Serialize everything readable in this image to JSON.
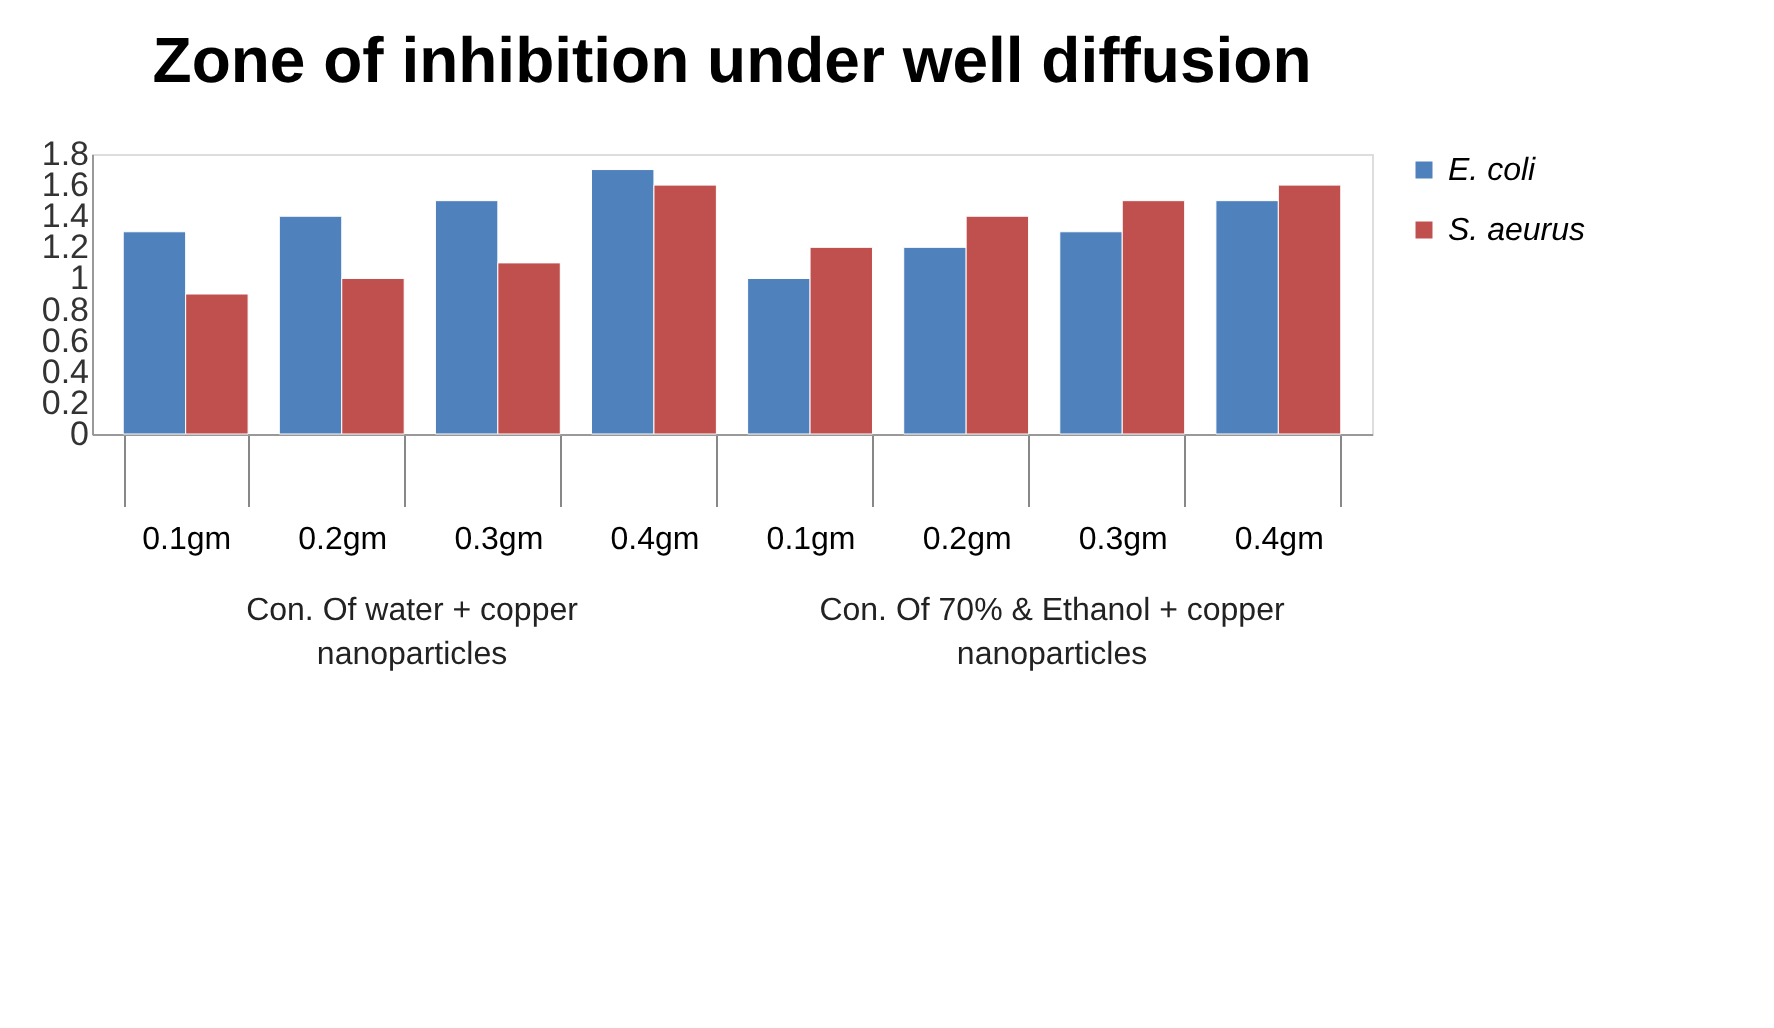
{
  "chart_data": {
    "type": "bar",
    "title": "Zone of inhibition under well diffusion",
    "categories": [
      "0.1gm",
      "0.2gm",
      "0.3gm",
      "0.4gm",
      "0.1gm",
      "0.2gm",
      "0.3gm",
      "0.4gm"
    ],
    "series": [
      {
        "name": "E. coli",
        "color": "#4f81bd",
        "values": [
          1.3,
          1.4,
          1.5,
          1.7,
          1.0,
          1.2,
          1.3,
          1.5
        ]
      },
      {
        "name": "S. aeurus",
        "color": "#c0504d",
        "values": [
          0.9,
          1.0,
          1.1,
          1.6,
          1.2,
          1.4,
          1.5,
          1.6
        ]
      }
    ],
    "ylim": [
      0,
      1.8
    ],
    "yticks": [
      0,
      0.2,
      0.4,
      0.6,
      0.8,
      1,
      1.2,
      1.4,
      1.6,
      1.8
    ],
    "annotations": [
      "Con. Of water + copper nanoparticles",
      "Con. Of 70% & Ethanol + copper nanoparticles"
    ],
    "legend": "right",
    "grid": false
  }
}
